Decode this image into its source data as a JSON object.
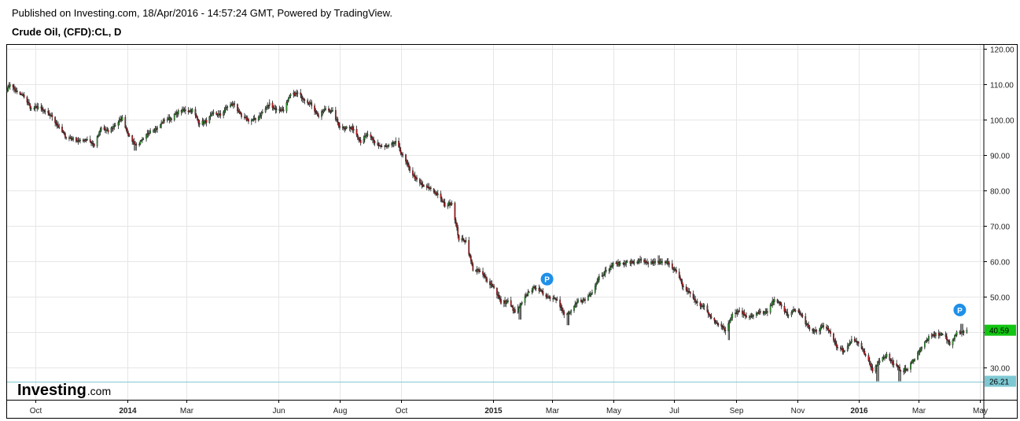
{
  "header": {
    "published": "Published on Investing.com, 18/Apr/2016 - 14:57:24 GMT, Powered by TradingView.",
    "symbol": "Crude Oil, (CFD):CL, D"
  },
  "watermark": {
    "brand": "Investing",
    "suffix": ".com"
  },
  "chart_data": {
    "type": "candlestick",
    "title": "Crude Oil, (CFD):CL, D",
    "yaxis": {
      "position": "right",
      "ylim": [
        21,
        121
      ],
      "ticks": [
        "120.00",
        "110.00",
        "100.00",
        "90.00",
        "80.00",
        "70.00",
        "60.00",
        "50.00",
        "40.00",
        "30.00"
      ]
    },
    "xaxis": {
      "range": [
        "2013-09-03",
        "2016-05-05"
      ],
      "ticks": [
        {
          "label": "Oct",
          "date": "2013-10-01",
          "bold": false
        },
        {
          "label": "2014",
          "date": "2014-01-01",
          "bold": true
        },
        {
          "label": "Mar",
          "date": "2014-03-01",
          "bold": false
        },
        {
          "label": "Jun",
          "date": "2014-06-01",
          "bold": false
        },
        {
          "label": "Aug",
          "date": "2014-08-01",
          "bold": false
        },
        {
          "label": "Oct",
          "date": "2014-10-01",
          "bold": false
        },
        {
          "label": "2015",
          "date": "2015-01-01",
          "bold": true
        },
        {
          "label": "Mar",
          "date": "2015-03-01",
          "bold": false
        },
        {
          "label": "May",
          "date": "2015-05-01",
          "bold": false
        },
        {
          "label": "Jul",
          "date": "2015-07-01",
          "bold": false
        },
        {
          "label": "Sep",
          "date": "2015-09-01",
          "bold": false
        },
        {
          "label": "Nov",
          "date": "2015-11-01",
          "bold": false
        },
        {
          "label": "2016",
          "date": "2016-01-01",
          "bold": true
        },
        {
          "label": "Mar",
          "date": "2016-03-01",
          "bold": false
        },
        {
          "label": "May",
          "date": "2016-05-01",
          "bold": false
        }
      ]
    },
    "grid": true,
    "price_path": [
      [
        "2013-09-03",
        108.5
      ],
      [
        "2013-09-06",
        110.0
      ],
      [
        "2013-09-13",
        107.5
      ],
      [
        "2013-09-20",
        106.5
      ],
      [
        "2013-09-27",
        103.0
      ],
      [
        "2013-10-04",
        103.5
      ],
      [
        "2013-10-11",
        102.0
      ],
      [
        "2013-10-18",
        100.8
      ],
      [
        "2013-10-25",
        97.5
      ],
      [
        "2013-11-01",
        95.0
      ],
      [
        "2013-11-08",
        94.5
      ],
      [
        "2013-11-15",
        93.8
      ],
      [
        "2013-11-22",
        94.5
      ],
      [
        "2013-11-29",
        92.7
      ],
      [
        "2013-12-06",
        97.6
      ],
      [
        "2013-12-13",
        96.5
      ],
      [
        "2013-12-20",
        98.5
      ],
      [
        "2013-12-27",
        100.3
      ],
      [
        "2014-01-03",
        95.0
      ],
      [
        "2014-01-10",
        92.7
      ],
      [
        "2014-01-17",
        94.2
      ],
      [
        "2014-01-24",
        97.0
      ],
      [
        "2014-01-31",
        97.5
      ],
      [
        "2014-02-07",
        99.9
      ],
      [
        "2014-02-14",
        100.3
      ],
      [
        "2014-02-21",
        102.2
      ],
      [
        "2014-02-28",
        102.6
      ],
      [
        "2014-03-07",
        102.6
      ],
      [
        "2014-03-14",
        98.9
      ],
      [
        "2014-03-21",
        99.5
      ],
      [
        "2014-03-28",
        101.7
      ],
      [
        "2014-04-04",
        101.2
      ],
      [
        "2014-04-11",
        103.7
      ],
      [
        "2014-04-18",
        104.3
      ],
      [
        "2014-04-25",
        100.6
      ],
      [
        "2014-05-02",
        99.8
      ],
      [
        "2014-05-09",
        99.9
      ],
      [
        "2014-05-16",
        102.0
      ],
      [
        "2014-05-23",
        104.4
      ],
      [
        "2014-05-30",
        102.7
      ],
      [
        "2014-06-06",
        102.7
      ],
      [
        "2014-06-13",
        106.9
      ],
      [
        "2014-06-20",
        107.3
      ],
      [
        "2014-06-27",
        105.7
      ],
      [
        "2014-07-04",
        104.1
      ],
      [
        "2014-07-11",
        100.8
      ],
      [
        "2014-07-18",
        103.1
      ],
      [
        "2014-07-25",
        102.1
      ],
      [
        "2014-08-01",
        97.9
      ],
      [
        "2014-08-08",
        97.7
      ],
      [
        "2014-08-15",
        97.3
      ],
      [
        "2014-08-22",
        93.7
      ],
      [
        "2014-08-29",
        95.8
      ],
      [
        "2014-09-05",
        93.3
      ],
      [
        "2014-09-12",
        92.3
      ],
      [
        "2014-09-19",
        92.4
      ],
      [
        "2014-09-26",
        93.5
      ],
      [
        "2014-10-03",
        89.7
      ],
      [
        "2014-10-10",
        85.8
      ],
      [
        "2014-10-17",
        82.8
      ],
      [
        "2014-10-24",
        81.0
      ],
      [
        "2014-10-31",
        80.5
      ],
      [
        "2014-11-07",
        78.7
      ],
      [
        "2014-11-14",
        75.8
      ],
      [
        "2014-11-21",
        76.5
      ],
      [
        "2014-11-28",
        66.2
      ],
      [
        "2014-12-05",
        65.8
      ],
      [
        "2014-12-12",
        57.8
      ],
      [
        "2014-12-19",
        57.1
      ],
      [
        "2014-12-26",
        54.7
      ],
      [
        "2015-01-02",
        52.7
      ],
      [
        "2015-01-09",
        48.4
      ],
      [
        "2015-01-16",
        48.7
      ],
      [
        "2015-01-23",
        45.6
      ],
      [
        "2015-01-30",
        48.2
      ],
      [
        "2015-02-06",
        51.7
      ],
      [
        "2015-02-13",
        52.8
      ],
      [
        "2015-02-20",
        50.8
      ],
      [
        "2015-02-27",
        49.8
      ],
      [
        "2015-03-06",
        49.6
      ],
      [
        "2015-03-13",
        44.8
      ],
      [
        "2015-03-20",
        45.7
      ],
      [
        "2015-03-27",
        48.9
      ],
      [
        "2015-04-03",
        49.1
      ],
      [
        "2015-04-10",
        51.6
      ],
      [
        "2015-04-17",
        55.7
      ],
      [
        "2015-04-24",
        57.2
      ],
      [
        "2015-05-01",
        59.2
      ],
      [
        "2015-05-08",
        59.4
      ],
      [
        "2015-05-15",
        59.7
      ],
      [
        "2015-05-22",
        59.7
      ],
      [
        "2015-05-29",
        60.3
      ],
      [
        "2015-06-05",
        59.1
      ],
      [
        "2015-06-12",
        59.9
      ],
      [
        "2015-06-19",
        59.6
      ],
      [
        "2015-06-26",
        59.6
      ],
      [
        "2015-07-03",
        56.9
      ],
      [
        "2015-07-10",
        52.7
      ],
      [
        "2015-07-17",
        50.9
      ],
      [
        "2015-07-24",
        48.1
      ],
      [
        "2015-07-31",
        47.1
      ],
      [
        "2015-08-07",
        43.9
      ],
      [
        "2015-08-14",
        42.5
      ],
      [
        "2015-08-21",
        40.5
      ],
      [
        "2015-08-28",
        45.2
      ],
      [
        "2015-09-04",
        46.1
      ],
      [
        "2015-09-11",
        44.6
      ],
      [
        "2015-09-18",
        44.7
      ],
      [
        "2015-09-25",
        45.7
      ],
      [
        "2015-10-02",
        45.5
      ],
      [
        "2015-10-09",
        49.6
      ],
      [
        "2015-10-16",
        47.3
      ],
      [
        "2015-10-23",
        44.6
      ],
      [
        "2015-10-30",
        46.6
      ],
      [
        "2015-11-06",
        44.3
      ],
      [
        "2015-11-13",
        40.7
      ],
      [
        "2015-11-20",
        40.4
      ],
      [
        "2015-11-27",
        41.7
      ],
      [
        "2015-12-04",
        39.9
      ],
      [
        "2015-12-11",
        35.6
      ],
      [
        "2015-12-18",
        34.7
      ],
      [
        "2015-12-25",
        38.1
      ],
      [
        "2016-01-01",
        37.0
      ],
      [
        "2016-01-08",
        33.2
      ],
      [
        "2016-01-15",
        29.4
      ],
      [
        "2016-01-22",
        32.2
      ],
      [
        "2016-01-29",
        33.6
      ],
      [
        "2016-02-05",
        30.9
      ],
      [
        "2016-02-12",
        29.4
      ],
      [
        "2016-02-19",
        29.6
      ],
      [
        "2016-02-26",
        32.8
      ],
      [
        "2016-03-04",
        35.9
      ],
      [
        "2016-03-11",
        38.5
      ],
      [
        "2016-03-18",
        39.4
      ],
      [
        "2016-03-25",
        39.5
      ],
      [
        "2016-04-01",
        36.8
      ],
      [
        "2016-04-08",
        39.7
      ],
      [
        "2016-04-15",
        40.4
      ],
      [
        "2016-04-18",
        40.6
      ]
    ],
    "extremes": [
      {
        "date": "2013-09-06",
        "value": 110.5
      },
      {
        "date": "2014-01-09",
        "value": 91.2
      },
      {
        "date": "2014-06-20",
        "value": 107.7
      },
      {
        "date": "2015-01-28",
        "value": 43.6
      },
      {
        "date": "2015-03-17",
        "value": 42.0
      },
      {
        "date": "2015-06-15",
        "value": 61.7
      },
      {
        "date": "2015-08-24",
        "value": 37.8
      },
      {
        "date": "2016-01-20",
        "value": 26.2
      },
      {
        "date": "2016-02-11",
        "value": 26.2
      },
      {
        "date": "2016-04-13",
        "value": 42.4
      }
    ],
    "bull_color": "#2e9e2e",
    "bear_color": "#c0161c",
    "wick_color": "#1a1a1a",
    "last_price": {
      "label": "40.59",
      "value": 40.59,
      "color": "#12c512"
    },
    "support_line": {
      "label": "26.21",
      "value": 26.21,
      "color": "#7ec8d3"
    },
    "markers": [
      {
        "text": "P",
        "date": "2015-02-24",
        "value": 55.0,
        "color": "#1e90e8"
      },
      {
        "text": "P",
        "date": "2016-04-11",
        "value": 46.3,
        "color": "#1e90e8"
      }
    ]
  }
}
